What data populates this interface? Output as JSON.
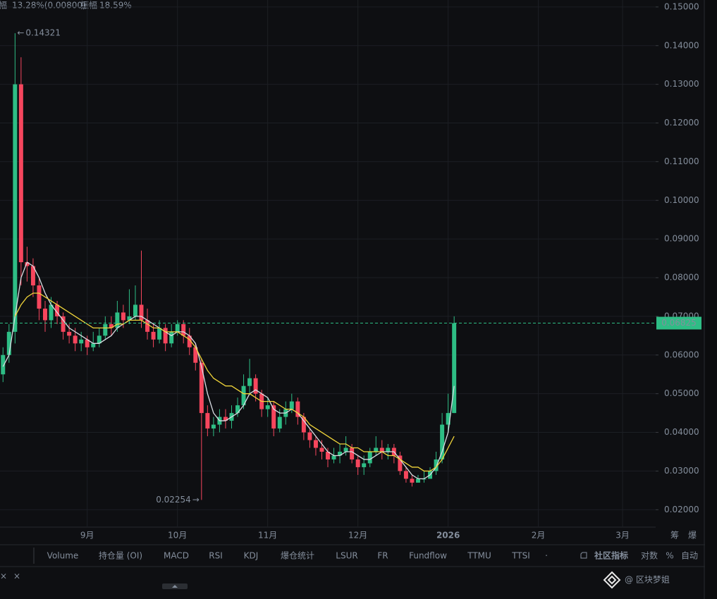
{
  "header": {
    "parts": [
      "幅",
      "13.28%(0.00800)",
      "振幅",
      "18.59%"
    ]
  },
  "chart_data": {
    "type": "candlestick",
    "categories": [
      null,
      null,
      null,
      null,
      null,
      null,
      null,
      null,
      null,
      null,
      null,
      null,
      null,
      null,
      "9月",
      null,
      null,
      null,
      null,
      null,
      null,
      null,
      null,
      null,
      null,
      null,
      null,
      null,
      null,
      "10月",
      null,
      null,
      null,
      null,
      null,
      null,
      null,
      null,
      null,
      null,
      null,
      null,
      null,
      null,
      "11月",
      null,
      null,
      null,
      null,
      null,
      null,
      null,
      null,
      null,
      null,
      null,
      null,
      null,
      null,
      "12月",
      null,
      null,
      null,
      null,
      null,
      null,
      null,
      null,
      null,
      null,
      null,
      null,
      null,
      null,
      "2026",
      null,
      null,
      null,
      null,
      null,
      null,
      null,
      null,
      null,
      null,
      null,
      null,
      null,
      null,
      "2月",
      null,
      null,
      null,
      null,
      null,
      null,
      null,
      null,
      null,
      null,
      null,
      null,
      null,
      "3月",
      null,
      null,
      null,
      null,
      null
    ],
    "open": [
      0.055,
      0.06,
      0.066,
      0.13,
      0.084,
      0.083,
      0.078,
      0.072,
      0.069,
      0.073,
      0.07,
      0.066,
      0.065,
      0.063,
      0.064,
      0.062,
      0.063,
      0.065,
      0.068,
      0.067,
      0.071,
      0.069,
      0.07,
      0.073,
      0.069,
      0.066,
      0.064,
      0.067,
      0.063,
      0.066,
      0.068,
      0.065,
      0.062,
      0.058,
      0.045,
      0.041,
      0.042,
      0.044,
      0.043,
      0.045,
      0.047,
      0.052,
      0.054,
      0.05,
      0.046,
      0.047,
      0.041,
      0.044,
      0.046,
      0.048,
      0.044,
      0.04,
      0.038,
      0.036,
      0.035,
      0.033,
      0.034,
      0.035,
      0.036,
      0.033,
      0.031,
      0.032,
      0.035,
      0.036,
      0.035,
      0.036,
      0.034,
      0.03,
      0.028,
      0.027,
      0.028,
      0.028,
      0.03,
      0.033,
      0.042,
      0.045,
      null,
      null,
      null,
      null,
      null,
      null,
      null,
      null,
      null,
      null,
      null,
      null,
      null,
      null,
      null,
      null,
      null,
      null,
      null,
      null,
      null,
      null,
      null,
      null,
      null,
      null,
      null,
      null,
      null,
      null,
      null,
      null,
      null
    ],
    "high": [
      0.062,
      0.068,
      0.14321,
      0.137,
      0.088,
      0.085,
      0.08,
      0.074,
      0.075,
      0.074,
      0.071,
      0.068,
      0.067,
      0.066,
      0.065,
      0.066,
      0.067,
      0.07,
      0.07,
      0.074,
      0.073,
      0.077,
      0.078,
      0.087,
      0.072,
      0.068,
      0.069,
      0.068,
      0.068,
      0.069,
      0.069,
      0.067,
      0.063,
      0.059,
      0.047,
      0.044,
      0.046,
      0.046,
      0.047,
      0.049,
      0.055,
      0.059,
      0.055,
      0.051,
      0.049,
      0.048,
      0.046,
      0.048,
      0.05,
      0.049,
      0.045,
      0.041,
      0.039,
      0.038,
      0.036,
      0.036,
      0.037,
      0.039,
      0.037,
      0.034,
      0.034,
      0.036,
      0.039,
      0.038,
      0.037,
      0.037,
      0.035,
      0.031,
      0.029,
      0.029,
      0.03,
      0.031,
      0.035,
      0.045,
      0.05,
      0.07,
      null,
      null,
      null,
      null,
      null,
      null,
      null,
      null,
      null,
      null,
      null,
      null,
      null,
      null,
      null,
      null,
      null,
      null,
      null,
      null,
      null,
      null,
      null,
      null,
      null,
      null,
      null,
      null,
      null,
      null,
      null,
      null,
      null
    ],
    "low": [
      0.053,
      0.058,
      0.063,
      0.078,
      0.079,
      0.075,
      0.069,
      0.066,
      0.067,
      0.068,
      0.064,
      0.063,
      0.061,
      0.061,
      0.06,
      0.061,
      0.062,
      0.064,
      0.065,
      0.066,
      0.067,
      0.068,
      0.069,
      0.067,
      0.064,
      0.062,
      0.063,
      0.061,
      0.062,
      0.065,
      0.063,
      0.06,
      0.056,
      0.02254,
      0.039,
      0.039,
      0.04,
      0.041,
      0.041,
      0.044,
      0.046,
      0.05,
      0.048,
      0.044,
      0.044,
      0.039,
      0.04,
      0.042,
      0.045,
      0.042,
      0.038,
      0.036,
      0.034,
      0.033,
      0.031,
      0.032,
      0.032,
      0.034,
      0.032,
      0.029,
      0.029,
      0.031,
      0.034,
      0.033,
      0.033,
      0.032,
      0.029,
      0.027,
      0.026,
      0.027,
      0.027,
      0.028,
      0.029,
      0.032,
      0.04,
      0.045,
      null,
      null,
      null,
      null,
      null,
      null,
      null,
      null,
      null,
      null,
      null,
      null,
      null,
      null,
      null,
      null,
      null,
      null,
      null,
      null,
      null,
      null,
      null,
      null,
      null,
      null,
      null,
      null,
      null,
      null,
      null,
      null,
      null
    ],
    "close": [
      0.06,
      0.066,
      0.13,
      0.084,
      0.083,
      0.078,
      0.072,
      0.069,
      0.073,
      0.07,
      0.066,
      0.065,
      0.063,
      0.064,
      0.062,
      0.063,
      0.065,
      0.068,
      0.067,
      0.071,
      0.069,
      0.07,
      0.073,
      0.069,
      0.066,
      0.064,
      0.067,
      0.063,
      0.066,
      0.068,
      0.065,
      0.062,
      0.058,
      0.045,
      0.041,
      0.042,
      0.044,
      0.043,
      0.045,
      0.047,
      0.052,
      0.054,
      0.05,
      0.046,
      0.047,
      0.041,
      0.044,
      0.046,
      0.048,
      0.044,
      0.04,
      0.038,
      0.036,
      0.035,
      0.033,
      0.034,
      0.035,
      0.036,
      0.033,
      0.031,
      0.032,
      0.035,
      0.036,
      0.035,
      0.036,
      0.034,
      0.03,
      0.028,
      0.027,
      0.028,
      0.028,
      0.03,
      0.033,
      0.042,
      0.045,
      0.06825,
      null,
      null,
      null,
      null,
      null,
      null,
      null,
      null,
      null,
      null,
      null,
      null,
      null,
      null,
      null,
      null,
      null,
      null,
      null,
      null,
      null,
      null,
      null,
      null,
      null,
      null,
      null,
      null,
      null,
      null,
      null,
      null,
      null
    ],
    "up_color": "#2ebd85",
    "down_color": "#f6465d",
    "series": [
      {
        "color": "#d9dde3",
        "values": [
          0.057,
          0.06,
          0.07,
          0.08,
          0.084,
          0.083,
          0.08,
          0.076,
          0.073,
          0.071,
          0.069,
          0.067,
          0.066,
          0.065,
          0.064,
          0.063,
          0.063,
          0.064,
          0.065,
          0.067,
          0.068,
          0.069,
          0.07,
          0.07,
          0.069,
          0.068,
          0.067,
          0.066,
          0.065,
          0.066,
          0.066,
          0.065,
          0.063,
          0.057,
          0.05,
          0.045,
          0.043,
          0.043,
          0.044,
          0.045,
          0.047,
          0.05,
          0.051,
          0.05,
          0.049,
          0.046,
          0.045,
          0.045,
          0.046,
          0.045,
          0.043,
          0.041,
          0.039,
          0.037,
          0.035,
          0.034,
          0.034,
          0.035,
          0.035,
          0.034,
          0.033,
          0.033,
          0.034,
          0.035,
          0.035,
          0.035,
          0.033,
          0.031,
          0.029,
          0.028,
          0.028,
          0.029,
          0.031,
          0.035,
          0.04,
          0.052,
          null,
          null,
          null,
          null,
          null,
          null,
          null,
          null,
          null,
          null,
          null,
          null,
          null,
          null,
          null,
          null,
          null,
          null,
          null,
          null,
          null,
          null,
          null,
          null,
          null,
          null,
          null,
          null,
          null,
          null,
          null,
          null,
          null
        ]
      },
      {
        "color": "#f0d43a",
        "values": [
          null,
          null,
          0.07,
          0.073,
          0.075,
          0.076,
          0.076,
          0.075,
          0.074,
          0.073,
          0.072,
          0.071,
          0.07,
          0.069,
          0.068,
          0.067,
          0.067,
          0.067,
          0.067,
          0.068,
          0.068,
          0.069,
          0.069,
          0.069,
          0.068,
          0.067,
          0.067,
          0.066,
          0.066,
          0.066,
          0.065,
          0.064,
          0.062,
          0.059,
          0.056,
          0.054,
          0.053,
          0.052,
          0.052,
          0.051,
          0.05,
          0.05,
          0.049,
          0.048,
          0.048,
          0.048,
          0.047,
          0.046,
          0.046,
          0.045,
          0.044,
          0.042,
          0.041,
          0.04,
          0.039,
          0.038,
          0.037,
          0.037,
          0.036,
          0.036,
          0.035,
          0.035,
          0.035,
          0.035,
          0.034,
          0.034,
          0.033,
          0.032,
          0.031,
          0.031,
          0.03,
          0.03,
          0.031,
          0.033,
          0.036,
          0.039,
          null,
          null,
          null,
          null,
          null,
          null,
          null,
          null,
          null,
          null,
          null,
          null,
          null,
          null,
          null,
          null,
          null,
          null,
          null,
          null,
          null,
          null,
          null,
          null,
          null,
          null,
          null,
          null,
          null,
          null,
          null,
          null,
          null
        ]
      }
    ],
    "ylim": [
      0.0155,
      0.1518
    ],
    "yticks": [
      {
        "value": 0.02,
        "label": "0.02000"
      },
      {
        "value": 0.03,
        "label": "0.03000"
      },
      {
        "value": 0.04,
        "label": "0.04000"
      },
      {
        "value": 0.05,
        "label": "0.05000"
      },
      {
        "value": 0.06,
        "label": "0.06000"
      },
      {
        "value": 0.07,
        "label": "0.07000"
      },
      {
        "value": 0.08,
        "label": "0.08000"
      },
      {
        "value": 0.09,
        "label": "0.09000"
      },
      {
        "value": 0.1,
        "label": "0.10000"
      },
      {
        "value": 0.11,
        "label": "0.11000"
      },
      {
        "value": 0.12,
        "label": "0.12000"
      },
      {
        "value": 0.13,
        "label": "0.13000"
      },
      {
        "value": 0.14,
        "label": "0.14000"
      },
      {
        "value": 0.15,
        "label": "0.15000"
      }
    ],
    "grid": true,
    "side_tabs": [
      "筹",
      "爆"
    ]
  },
  "toolbar": {
    "indicators": [
      "Volume",
      "持仓量 (OI)",
      "MACD",
      "RSI",
      "KDJ",
      "爆仓统计",
      "LSUR",
      "FR",
      "Fundflow",
      "TTMU",
      "TTSI"
    ],
    "right": [
      "社区指标",
      "对数",
      "%",
      "自动"
    ]
  },
  "watermark": "@ 区块梦姐"
}
